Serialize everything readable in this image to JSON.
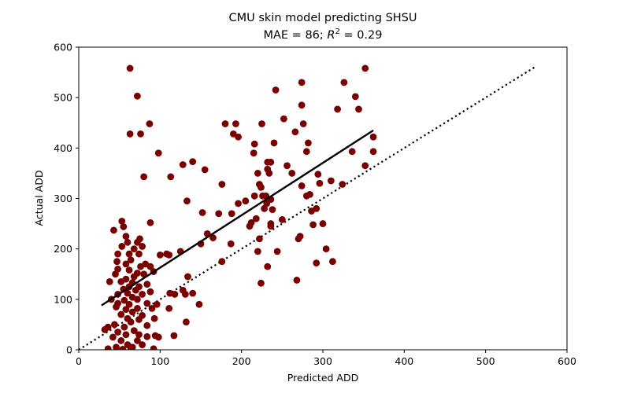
{
  "chart_data": {
    "type": "scatter",
    "title": "CMU skin model predicting SHSU",
    "subtitle": "MAE = 86; R² = 0.29",
    "subtitle_parts": {
      "prefix": "MAE = 86; ",
      "r": "R",
      "exp": "2",
      "suffix": " = 0.29"
    },
    "xlabel": "Predicted ADD",
    "ylabel": "Actual ADD",
    "xlim": [
      0,
      600
    ],
    "ylim": [
      0,
      600
    ],
    "xticks": [
      0,
      100,
      200,
      300,
      400,
      500,
      600
    ],
    "yticks": [
      0,
      100,
      200,
      300,
      400,
      500,
      600
    ],
    "grid": false,
    "marker_color": "#7a0000",
    "identity_line": {
      "style": "dotted",
      "color": "#000000",
      "x": [
        0,
        560
      ],
      "y": [
        0,
        560
      ]
    },
    "fit_line": {
      "style": "solid",
      "color": "#000000",
      "x": [
        28,
        362
      ],
      "y": [
        88,
        435
      ]
    },
    "points": [
      [
        63,
        558
      ],
      [
        72,
        503
      ],
      [
        87,
        448
      ],
      [
        63,
        428
      ],
      [
        76,
        428
      ],
      [
        98,
        390
      ],
      [
        80,
        343
      ],
      [
        113,
        343
      ],
      [
        88,
        252
      ],
      [
        53,
        255
      ],
      [
        55,
        244
      ],
      [
        43,
        237
      ],
      [
        58,
        225
      ],
      [
        60,
        213
      ],
      [
        72,
        213
      ],
      [
        75,
        220
      ],
      [
        78,
        205
      ],
      [
        68,
        200
      ],
      [
        53,
        205
      ],
      [
        48,
        190
      ],
      [
        62,
        190
      ],
      [
        74,
        190
      ],
      [
        64,
        178
      ],
      [
        47,
        175
      ],
      [
        58,
        170
      ],
      [
        82,
        170
      ],
      [
        88,
        165
      ],
      [
        76,
        165
      ],
      [
        48,
        160
      ],
      [
        62,
        158
      ],
      [
        45,
        150
      ],
      [
        72,
        152
      ],
      [
        92,
        155
      ],
      [
        80,
        150
      ],
      [
        68,
        145
      ],
      [
        38,
        135
      ],
      [
        52,
        135
      ],
      [
        58,
        140
      ],
      [
        66,
        133
      ],
      [
        84,
        130
      ],
      [
        62,
        125
      ],
      [
        74,
        125
      ],
      [
        55,
        120
      ],
      [
        70,
        118
      ],
      [
        48,
        110
      ],
      [
        60,
        112
      ],
      [
        78,
        110
      ],
      [
        88,
        115
      ],
      [
        66,
        104
      ],
      [
        40,
        100
      ],
      [
        56,
        98
      ],
      [
        72,
        100
      ],
      [
        48,
        92
      ],
      [
        62,
        90
      ],
      [
        84,
        92
      ],
      [
        46,
        85
      ],
      [
        58,
        80
      ],
      [
        72,
        82
      ],
      [
        90,
        82
      ],
      [
        66,
        75
      ],
      [
        52,
        70
      ],
      [
        78,
        68
      ],
      [
        60,
        62
      ],
      [
        74,
        60
      ],
      [
        64,
        55
      ],
      [
        44,
        50
      ],
      [
        56,
        45
      ],
      [
        84,
        48
      ],
      [
        36,
        45
      ],
      [
        32,
        40
      ],
      [
        48,
        35
      ],
      [
        68,
        38
      ],
      [
        58,
        30
      ],
      [
        74,
        30
      ],
      [
        42,
        25
      ],
      [
        84,
        26
      ],
      [
        94,
        28
      ],
      [
        52,
        18
      ],
      [
        72,
        18
      ],
      [
        98,
        25
      ],
      [
        60,
        10
      ],
      [
        78,
        10
      ],
      [
        46,
        5
      ],
      [
        66,
        5
      ],
      [
        36,
        2
      ],
      [
        54,
        1
      ],
      [
        64,
        2
      ],
      [
        92,
        2
      ],
      [
        100,
        188
      ],
      [
        108,
        190
      ],
      [
        111,
        188
      ],
      [
        125,
        195
      ],
      [
        118,
        110
      ],
      [
        112,
        112
      ],
      [
        128,
        118
      ],
      [
        131,
        110
      ],
      [
        96,
        90
      ],
      [
        111,
        82
      ],
      [
        93,
        62
      ],
      [
        134,
        145
      ],
      [
        140,
        112
      ],
      [
        148,
        90
      ],
      [
        132,
        55
      ],
      [
        117,
        28
      ],
      [
        128,
        367
      ],
      [
        140,
        373
      ],
      [
        155,
        357
      ],
      [
        133,
        295
      ],
      [
        152,
        272
      ],
      [
        158,
        230
      ],
      [
        150,
        210
      ],
      [
        165,
        222
      ],
      [
        172,
        270
      ],
      [
        176,
        328
      ],
      [
        176,
        175
      ],
      [
        188,
        270
      ],
      [
        187,
        210
      ],
      [
        196,
        290
      ],
      [
        180,
        448
      ],
      [
        190,
        428
      ],
      [
        196,
        422
      ],
      [
        193,
        448
      ],
      [
        205,
        295
      ],
      [
        216,
        305
      ],
      [
        210,
        245
      ],
      [
        215,
        390
      ],
      [
        216,
        408
      ],
      [
        220,
        350
      ],
      [
        222,
        328
      ],
      [
        224,
        322
      ],
      [
        225,
        448
      ],
      [
        218,
        260
      ],
      [
        212,
        252
      ],
      [
        220,
        195
      ],
      [
        222,
        220
      ],
      [
        224,
        132
      ],
      [
        226,
        305
      ],
      [
        228,
        280
      ],
      [
        232,
        358
      ],
      [
        230,
        305
      ],
      [
        231,
        290
      ],
      [
        232,
        372
      ],
      [
        236,
        372
      ],
      [
        234,
        350
      ],
      [
        236,
        298
      ],
      [
        236,
        245
      ],
      [
        232,
        165
      ],
      [
        236,
        250
      ],
      [
        240,
        410
      ],
      [
        238,
        278
      ],
      [
        242,
        515
      ],
      [
        244,
        195
      ],
      [
        250,
        258
      ],
      [
        252,
        458
      ],
      [
        256,
        365
      ],
      [
        262,
        350
      ],
      [
        266,
        432
      ],
      [
        268,
        138
      ],
      [
        270,
        220
      ],
      [
        272,
        225
      ],
      [
        274,
        530
      ],
      [
        274,
        485
      ],
      [
        276,
        448
      ],
      [
        274,
        325
      ],
      [
        280,
        393
      ],
      [
        282,
        410
      ],
      [
        280,
        305
      ],
      [
        284,
        308
      ],
      [
        286,
        275
      ],
      [
        288,
        248
      ],
      [
        292,
        280
      ],
      [
        294,
        348
      ],
      [
        296,
        330
      ],
      [
        292,
        172
      ],
      [
        300,
        250
      ],
      [
        304,
        200
      ],
      [
        310,
        335
      ],
      [
        312,
        175
      ],
      [
        318,
        477
      ],
      [
        326,
        530
      ],
      [
        324,
        328
      ],
      [
        340,
        502
      ],
      [
        344,
        477
      ],
      [
        336,
        393
      ],
      [
        352,
        558
      ],
      [
        352,
        365
      ],
      [
        362,
        422
      ],
      [
        362,
        393
      ]
    ]
  }
}
